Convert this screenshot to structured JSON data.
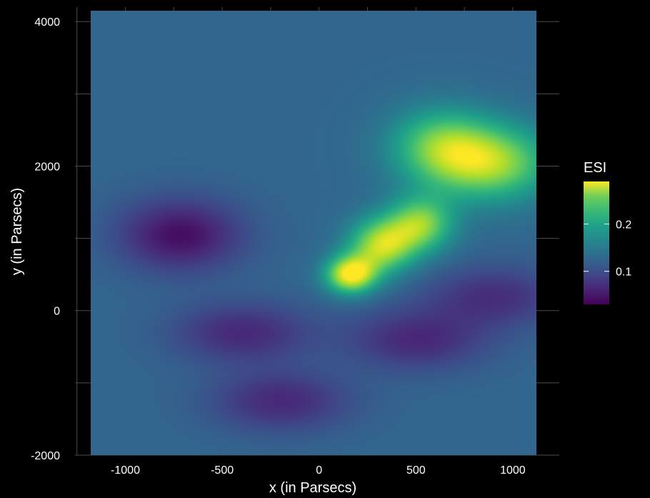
{
  "chart_data": {
    "type": "heatmap",
    "title": "",
    "xlabel": "x (in Parsecs)",
    "ylabel": "y (in Parsecs)",
    "xlim": [
      -1260,
      1240
    ],
    "ylim": [
      -2000,
      4200
    ],
    "x_ticks": [
      -1000,
      -500,
      0,
      500,
      1000
    ],
    "y_ticks": [
      -2000,
      0,
      2000,
      4000
    ],
    "x_tick_labels": [
      "-1000",
      "-500",
      "0",
      "500",
      "1000"
    ],
    "y_tick_labels": [
      "-2000",
      "0",
      "2000",
      "4000"
    ],
    "grid": true,
    "colormap": "viridis",
    "legend": {
      "title": "ESI",
      "placement": "right",
      "range": [
        0.03,
        0.29
      ],
      "breaks": [
        0.1,
        0.2
      ],
      "break_labels": [
        "0.1",
        "0.2"
      ]
    },
    "data_extent": {
      "x": [
        -1180,
        1120
      ],
      "y": [
        -2000,
        4150
      ]
    },
    "background_value": 0.115,
    "features": [
      {
        "label": "hotspot",
        "x": 160,
        "y": 500,
        "value": 0.29
      },
      {
        "label": "ridge",
        "x": 320,
        "y": 900,
        "value": 0.26
      },
      {
        "label": "ridge",
        "x": 520,
        "y": 1200,
        "value": 0.24
      },
      {
        "label": "upper-right plume",
        "x": 880,
        "y": 2050,
        "value": 0.25
      },
      {
        "label": "upper plume",
        "x": 620,
        "y": 2300,
        "value": 0.21
      },
      {
        "label": "low pocket",
        "x": -720,
        "y": 1050,
        "value": 0.04
      },
      {
        "label": "low region",
        "x": -400,
        "y": -300,
        "value": 0.06
      },
      {
        "label": "low region",
        "x": -200,
        "y": -1250,
        "value": 0.06
      },
      {
        "label": "low region",
        "x": 500,
        "y": -400,
        "value": 0.06
      },
      {
        "label": "low region",
        "x": 900,
        "y": 200,
        "value": 0.065
      }
    ]
  }
}
